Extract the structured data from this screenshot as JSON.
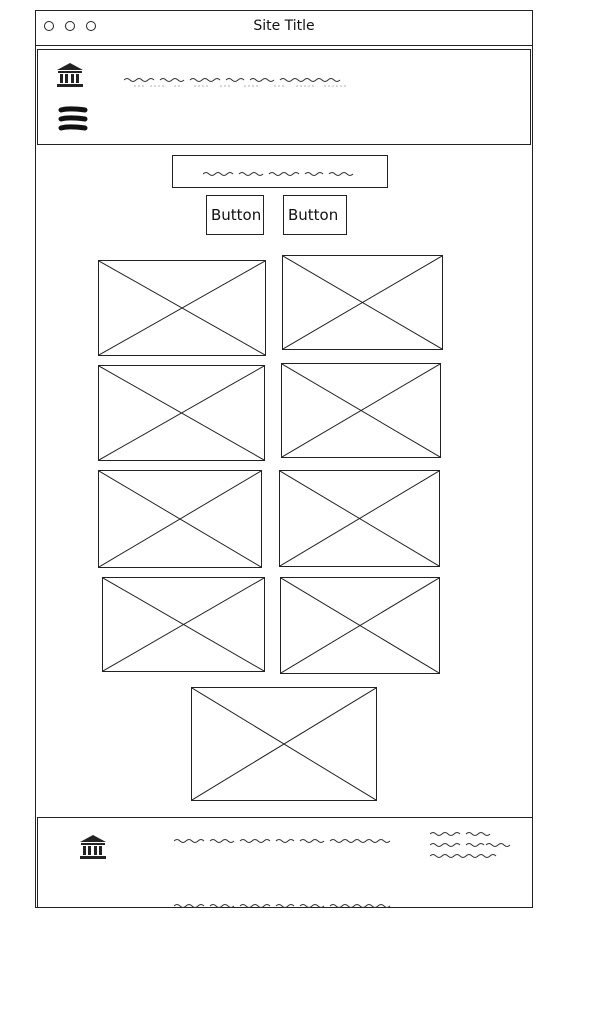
{
  "window": {
    "title": "Site Title"
  },
  "header": {
    "logo": "bank-icon",
    "menu_icon": "hamburger-icon"
  },
  "content": {
    "buttons": [
      "Button",
      "Button"
    ],
    "image_placeholder_count": 9
  },
  "footer": {
    "logo": "bank-icon"
  }
}
